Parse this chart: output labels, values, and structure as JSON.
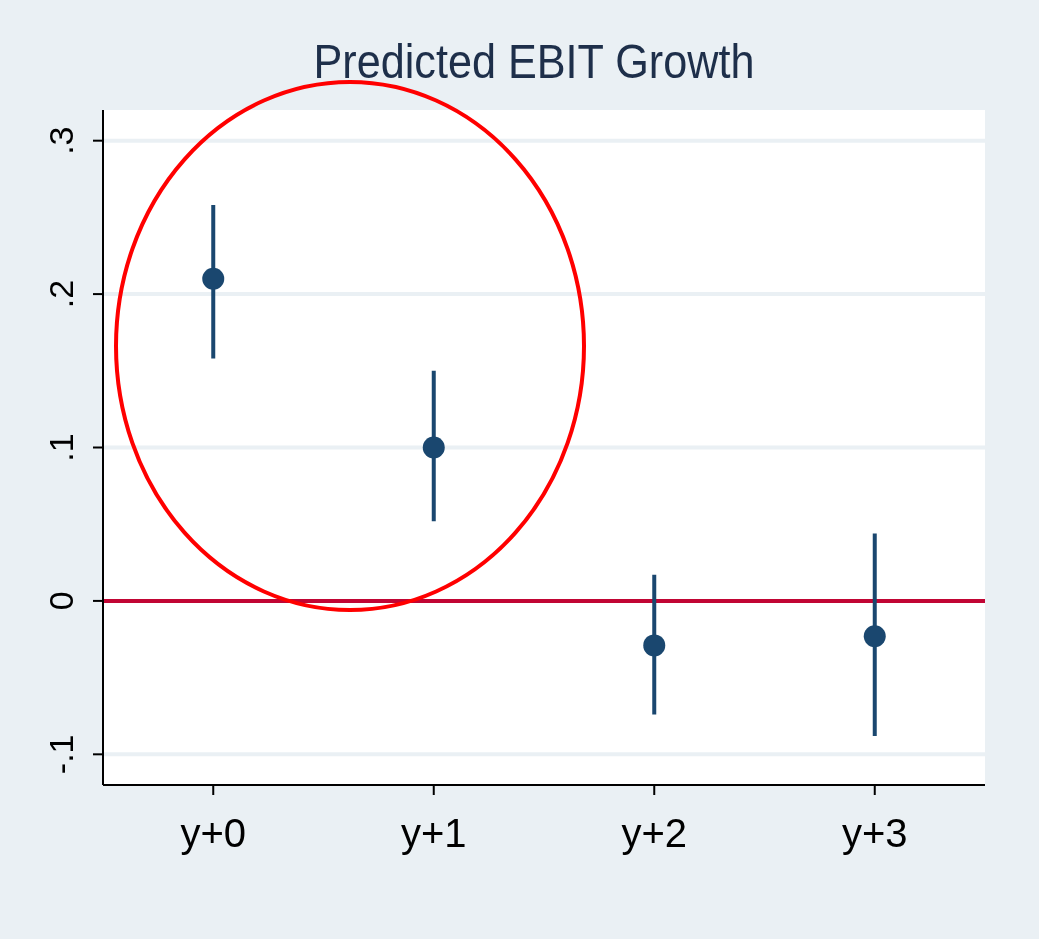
{
  "chart_data": {
    "type": "scatter",
    "title": "Predicted EBIT Growth",
    "categories": [
      "y+0",
      "y+1",
      "y+2",
      "y+3"
    ],
    "values": [
      0.21,
      0.1,
      -0.029,
      -0.023
    ],
    "errors": [
      [
        0.158,
        0.258
      ],
      [
        0.052,
        0.15
      ],
      [
        -0.074,
        0.017
      ],
      [
        -0.088,
        0.044
      ]
    ],
    "color": "#1a476f",
    "marker": "circle",
    "ylim": [
      -0.12,
      0.32
    ],
    "yticks": [
      {
        "value": -0.1,
        "label": "-.1"
      },
      {
        "value": 0,
        "label": "0"
      },
      {
        "value": 0.1,
        "label": ".1"
      },
      {
        "value": 0.2,
        "label": ".2"
      },
      {
        "value": 0.3,
        "label": ".3"
      }
    ],
    "grid": "y",
    "ref_lines": [
      {
        "axis": "y",
        "value": 0,
        "color": "#c10534"
      }
    ]
  }
}
